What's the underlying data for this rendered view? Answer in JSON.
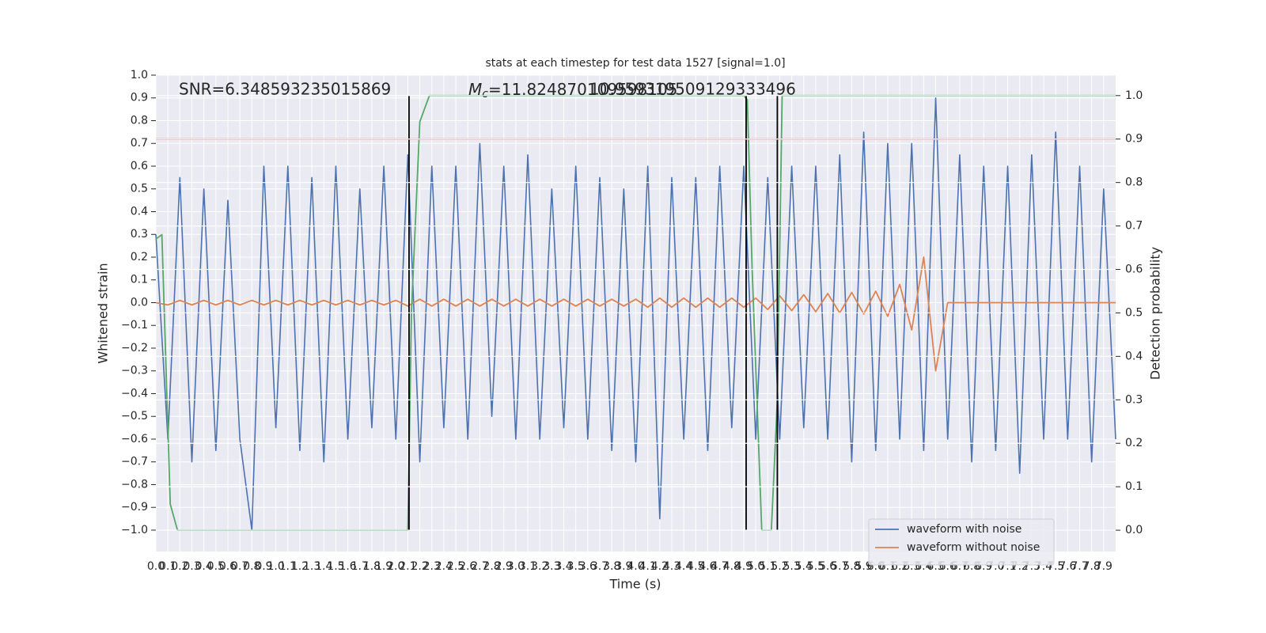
{
  "chart_data": {
    "type": "line",
    "title": "stats at each timestep for test data 1527 [signal=1.0]",
    "xlabel": "Time (s)",
    "ylabel": "Whitened strain",
    "y2label": "Detection probability",
    "annotations": {
      "snr": "SNR=6.348593235015869",
      "mc_symbol": "M",
      "mc_subscript": "c",
      "mc_value": "=11.824870109598105",
      "overlap": "10.959319509129333496"
    },
    "grid": true,
    "legend": "lower right",
    "xlim": [
      0,
      8
    ],
    "ylim": [
      -1.094,
      1.0
    ],
    "y2lim": [
      -0.049,
      1.047
    ],
    "x": [
      0,
      0.1,
      0.2,
      0.3,
      0.4,
      0.5,
      0.6,
      0.7,
      0.8,
      0.9,
      1.0,
      1.1,
      1.2,
      1.3,
      1.4,
      1.5,
      1.6,
      1.7,
      1.8,
      1.9,
      2.0,
      2.1,
      2.2,
      2.3,
      2.4,
      2.5,
      2.6,
      2.7,
      2.8,
      2.9,
      3.0,
      3.1,
      3.2,
      3.3,
      3.4,
      3.5,
      3.6,
      3.7,
      3.8,
      3.9,
      4.0,
      4.1,
      4.2,
      4.3,
      4.4,
      4.5,
      4.6,
      4.7,
      4.8,
      4.9,
      5.0,
      5.1,
      5.2,
      5.3,
      5.4,
      5.5,
      5.6,
      5.7,
      5.8,
      5.9,
      6.0,
      6.1,
      6.2,
      6.3,
      6.4,
      6.5,
      6.6,
      6.7,
      6.8,
      6.9,
      7.0,
      7.1,
      7.2,
      7.3,
      7.4,
      7.5,
      7.6,
      7.7,
      7.8,
      7.9,
      8.0
    ],
    "series": [
      {
        "name": "waveform with noise",
        "color": "#4c72b0",
        "values": [
          0.3,
          -0.6,
          0.55,
          -0.7,
          0.5,
          -0.65,
          0.45,
          -0.6,
          -1.0,
          0.6,
          -0.55,
          0.6,
          -0.65,
          0.55,
          -0.7,
          0.6,
          -0.6,
          0.5,
          -0.55,
          0.6,
          -0.6,
          0.65,
          -0.7,
          0.6,
          -0.55,
          0.6,
          -0.6,
          0.7,
          -0.5,
          0.6,
          -0.6,
          0.65,
          -0.6,
          0.5,
          -0.55,
          0.6,
          -0.6,
          0.55,
          -0.65,
          0.5,
          -0.7,
          0.6,
          -0.95,
          0.55,
          -0.6,
          0.55,
          -0.65,
          0.6,
          -0.55,
          0.6,
          -0.6,
          0.55,
          -0.6,
          0.6,
          -0.55,
          0.6,
          -0.6,
          0.65,
          -0.7,
          0.75,
          -0.65,
          0.7,
          -0.6,
          0.7,
          -0.65,
          0.9,
          -0.6,
          0.65,
          -0.7,
          0.6,
          -0.65,
          0.6,
          -0.75,
          0.65,
          -0.6,
          0.75,
          -0.6,
          0.6,
          -0.7,
          0.5,
          -0.6
        ]
      },
      {
        "name": "waveform without noise",
        "color": "#dd8452",
        "values": [
          0,
          -0.01,
          0.01,
          -0.01,
          0.01,
          -0.01,
          0.01,
          -0.01,
          0.01,
          -0.01,
          0.01,
          -0.01,
          0.01,
          -0.01,
          0.01,
          -0.01,
          0.01,
          -0.01,
          0.01,
          -0.01,
          0.01,
          -0.015,
          0.015,
          -0.015,
          0.015,
          -0.015,
          0.015,
          -0.015,
          0.015,
          -0.015,
          0.015,
          -0.015,
          0.015,
          -0.015,
          0.015,
          -0.015,
          0.015,
          -0.015,
          0.015,
          -0.015,
          0.015,
          -0.02,
          0.02,
          -0.02,
          0.02,
          -0.02,
          0.02,
          -0.02,
          0.02,
          -0.02,
          0.02,
          -0.03,
          0.03,
          -0.035,
          0.035,
          -0.04,
          0.04,
          -0.045,
          0.045,
          -0.05,
          0.05,
          -0.06,
          0.08,
          -0.12,
          0.2,
          -0.3,
          0,
          0,
          0,
          0,
          0,
          0,
          0,
          0,
          0,
          0,
          0,
          0,
          0,
          0,
          0
        ]
      },
      {
        "color": "#55a868",
        "axis": "y2",
        "x": [
          0,
          0.05,
          0.12,
          0.18,
          2.1,
          2.13,
          2.2,
          2.28,
          4.9,
          4.93,
          4.97,
          5.05,
          5.13,
          5.18,
          5.22,
          8.0
        ],
        "values": [
          0.67,
          0.68,
          0.06,
          0,
          0,
          0.5,
          0.94,
          1,
          1,
          0.99,
          0.6,
          0,
          0,
          0.3,
          1,
          1
        ]
      }
    ],
    "threshold": {
      "value": 0.9,
      "color": "#c44e52",
      "axis": "y2"
    },
    "vlines": [
      2.11,
      4.92,
      5.18
    ],
    "yticks": [
      {
        "value": -1.0,
        "label": "−1.0"
      },
      {
        "value": -0.9,
        "label": "−0.9"
      },
      {
        "value": -0.8,
        "label": "−0.8"
      },
      {
        "value": -0.7,
        "label": "−0.7"
      },
      {
        "value": -0.6,
        "label": "−0.6"
      },
      {
        "value": -0.5,
        "label": "−0.5"
      },
      {
        "value": -0.4,
        "label": "−0.4"
      },
      {
        "value": -0.3,
        "label": "−0.3"
      },
      {
        "value": -0.2,
        "label": "−0.2"
      },
      {
        "value": -0.1,
        "label": "−0.1"
      },
      {
        "value": 0,
        "label": "0.0"
      },
      {
        "value": 0.1,
        "label": "0.1"
      },
      {
        "value": 0.2,
        "label": "0.2"
      },
      {
        "value": 0.3,
        "label": "0.3"
      },
      {
        "value": 0.4,
        "label": "0.4"
      },
      {
        "value": 0.5,
        "label": "0.5"
      },
      {
        "value": 0.6,
        "label": "0.6"
      },
      {
        "value": 0.7,
        "label": "0.7"
      },
      {
        "value": 0.8,
        "label": "0.8"
      },
      {
        "value": 0.9,
        "label": "0.9"
      },
      {
        "value": 1.0,
        "label": "1.0"
      }
    ],
    "y2ticks": [
      {
        "value": 0,
        "label": "0.0"
      },
      {
        "value": 0.1,
        "label": "0.1"
      },
      {
        "value": 0.2,
        "label": "0.2"
      },
      {
        "value": 0.3,
        "label": "0.3"
      },
      {
        "value": 0.4,
        "label": "0.4"
      },
      {
        "value": 0.5,
        "label": "0.5"
      },
      {
        "value": 0.6,
        "label": "0.6"
      },
      {
        "value": 0.7,
        "label": "0.7"
      },
      {
        "value": 0.8,
        "label": "0.8"
      },
      {
        "value": 0.9,
        "label": "0.9"
      },
      {
        "value": 1.0,
        "label": "1.0"
      }
    ],
    "xticks": [
      {
        "value": 0,
        "label": "0.0"
      },
      {
        "value": 0.1,
        "label": "0.1"
      },
      {
        "value": 0.2,
        "label": "0.2"
      },
      {
        "value": 0.3,
        "label": "0.3"
      },
      {
        "value": 0.4,
        "label": "0.4"
      },
      {
        "value": 0.5,
        "label": "0.5"
      },
      {
        "value": 0.6,
        "label": "0.6"
      },
      {
        "value": 0.7,
        "label": "0.7"
      },
      {
        "value": 0.8,
        "label": "0.8"
      },
      {
        "value": 0.9,
        "label": "0.9"
      },
      {
        "value": 1.0,
        "label": "1.0"
      },
      {
        "value": 1.1,
        "label": "1.1"
      },
      {
        "value": 1.2,
        "label": "1.2"
      },
      {
        "value": 1.3,
        "label": "1.3"
      },
      {
        "value": 1.4,
        "label": "1.4"
      },
      {
        "value": 1.5,
        "label": "1.5"
      },
      {
        "value": 1.6,
        "label": "1.6"
      },
      {
        "value": 1.7,
        "label": "1.7"
      },
      {
        "value": 1.8,
        "label": "1.8"
      },
      {
        "value": 1.9,
        "label": "1.9"
      },
      {
        "value": 2.0,
        "label": "2.0"
      },
      {
        "value": 2.1,
        "label": "2.1"
      },
      {
        "value": 2.2,
        "label": "2.2"
      },
      {
        "value": 2.3,
        "label": "2.3"
      },
      {
        "value": 2.4,
        "label": "2.4"
      },
      {
        "value": 2.5,
        "label": "2.5"
      },
      {
        "value": 2.6,
        "label": "2.6"
      },
      {
        "value": 2.7,
        "label": "2.7"
      },
      {
        "value": 2.8,
        "label": "2.8"
      },
      {
        "value": 2.9,
        "label": "2.9"
      },
      {
        "value": 3.0,
        "label": "3.0"
      },
      {
        "value": 3.1,
        "label": "3.1"
      },
      {
        "value": 3.2,
        "label": "3.2"
      },
      {
        "value": 3.3,
        "label": "3.3"
      },
      {
        "value": 3.4,
        "label": "3.4"
      },
      {
        "value": 3.5,
        "label": "3.5"
      },
      {
        "value": 3.6,
        "label": "3.6"
      },
      {
        "value": 3.7,
        "label": "3.7"
      },
      {
        "value": 3.8,
        "label": "3.8"
      },
      {
        "value": 3.9,
        "label": "3.9"
      },
      {
        "value": 4.0,
        "label": "4.0"
      },
      {
        "value": 4.1,
        "label": "4.1"
      },
      {
        "value": 4.2,
        "label": "4.2"
      },
      {
        "value": 4.3,
        "label": "4.3"
      },
      {
        "value": 4.4,
        "label": "4.4"
      },
      {
        "value": 4.5,
        "label": "4.5"
      },
      {
        "value": 4.6,
        "label": "4.6"
      },
      {
        "value": 4.7,
        "label": "4.7"
      },
      {
        "value": 4.8,
        "label": "4.8"
      },
      {
        "value": 4.9,
        "label": "4.9"
      },
      {
        "value": 5.0,
        "label": "5.0"
      },
      {
        "value": 5.1,
        "label": "5.1"
      },
      {
        "value": 5.2,
        "label": "5.2"
      },
      {
        "value": 5.3,
        "label": "5.3"
      },
      {
        "value": 5.4,
        "label": "5.4"
      },
      {
        "value": 5.5,
        "label": "5.5"
      },
      {
        "value": 5.6,
        "label": "5.6"
      },
      {
        "value": 5.7,
        "label": "5.7"
      },
      {
        "value": 5.8,
        "label": "5.8"
      },
      {
        "value": 5.9,
        "label": "5.9"
      },
      {
        "value": 6.0,
        "label": "6.0"
      },
      {
        "value": 6.1,
        "label": "6.1"
      },
      {
        "value": 6.2,
        "label": "6.2"
      },
      {
        "value": 6.3,
        "label": "6.3"
      },
      {
        "value": 6.4,
        "label": "6.4"
      },
      {
        "value": 6.5,
        "label": "6.5"
      },
      {
        "value": 6.6,
        "label": "6.6"
      },
      {
        "value": 6.7,
        "label": "6.7"
      },
      {
        "value": 6.8,
        "label": "6.8"
      },
      {
        "value": 6.9,
        "label": "6.9"
      },
      {
        "value": 7.0,
        "label": "7.0"
      },
      {
        "value": 7.1,
        "label": "7.1"
      },
      {
        "value": 7.2,
        "label": "7.2"
      },
      {
        "value": 7.3,
        "label": "7.3"
      },
      {
        "value": 7.4,
        "label": "7.4"
      },
      {
        "value": 7.5,
        "label": "7.5"
      },
      {
        "value": 7.6,
        "label": "7.6"
      },
      {
        "value": 7.7,
        "label": "7.7"
      },
      {
        "value": 7.8,
        "label": "7.8"
      },
      {
        "value": 7.9,
        "label": "7.9"
      }
    ]
  }
}
